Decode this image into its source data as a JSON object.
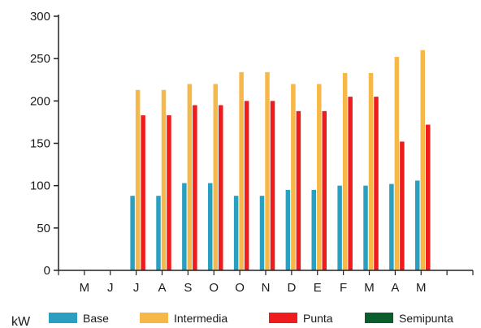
{
  "chart_data": {
    "type": "bar",
    "unit_label": "kW",
    "categories": [
      "M",
      "J",
      "J",
      "A",
      "S",
      "O",
      "O",
      "N",
      "D",
      "E",
      "F",
      "M",
      "A",
      "M"
    ],
    "ylim": [
      0,
      300
    ],
    "yticks": [
      0,
      50,
      100,
      150,
      200,
      250,
      300
    ],
    "grid": false,
    "legend_position": "bottom",
    "series": [
      {
        "name": "Base",
        "color": "#2a9fc0",
        "values": [
          null,
          null,
          88,
          88,
          103,
          103,
          88,
          88,
          95,
          95,
          100,
          100,
          102,
          106
        ]
      },
      {
        "name": "Intermedia",
        "color": "#f7b84a",
        "values": [
          null,
          null,
          213,
          213,
          220,
          220,
          234,
          234,
          220,
          220,
          233,
          233,
          252,
          260
        ]
      },
      {
        "name": "Punta",
        "color": "#ee1c1c",
        "values": [
          null,
          null,
          183,
          183,
          195,
          195,
          200,
          200,
          188,
          188,
          205,
          205,
          152,
          172
        ]
      },
      {
        "name": "Semipunta",
        "color": "#0b5e2b",
        "values": [
          null,
          null,
          null,
          null,
          null,
          null,
          null,
          null,
          null,
          null,
          null,
          null,
          null,
          null
        ]
      }
    ]
  }
}
